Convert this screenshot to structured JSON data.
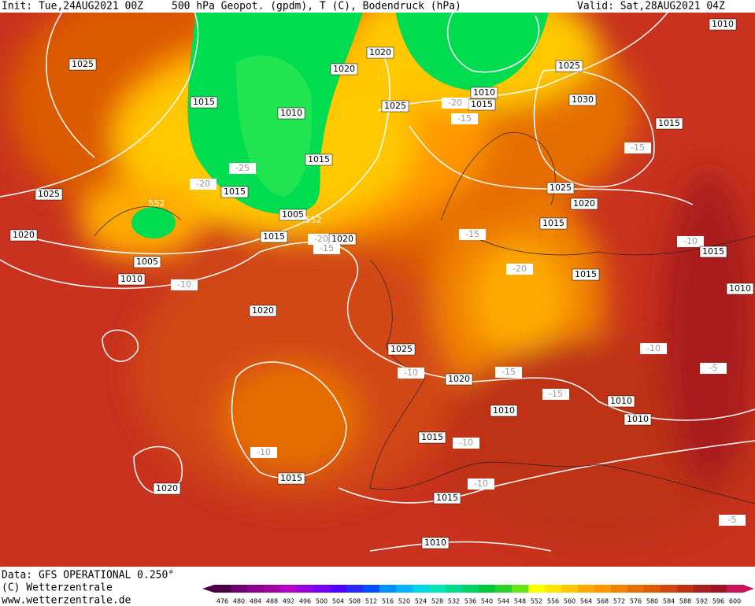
{
  "header": {
    "init": "Init: Tue,24AUG2021 00Z",
    "title": "500 hPa Geopot. (gpdm), T (C), Bodendruck (hPa)",
    "valid": "Valid: Sat,28AUG2021 04Z"
  },
  "map_labels": [
    "1025",
    "1020",
    "1020",
    "1010",
    "1015",
    "-20",
    "-15",
    "1025",
    "1015",
    "1010",
    "1030",
    "1025",
    "1010",
    "1015",
    "-15",
    "1015",
    "-25",
    "-20",
    "1015",
    "1025",
    "552",
    "1005",
    "552",
    "1020",
    "1015",
    "-20",
    "1020",
    "-15",
    "-15",
    "1025",
    "1020",
    "1015",
    "-10",
    "1015",
    "1005",
    "1010",
    "-10",
    "-20",
    "1015",
    "1010",
    "1020",
    "1025",
    "-10",
    "-10",
    "-5",
    "-15",
    "1020",
    "-15",
    "1010",
    "1010",
    "1010",
    "1015",
    "-10",
    "-10",
    "1015",
    "1020",
    "-10",
    "1015",
    "-5",
    "1010"
  ],
  "legend": {
    "labels": [
      476,
      480,
      484,
      488,
      492,
      496,
      500,
      504,
      508,
      512,
      516,
      520,
      524,
      528,
      532,
      536,
      540,
      544,
      548,
      552,
      556,
      560,
      564,
      568,
      572,
      576,
      580,
      584,
      588,
      592,
      596,
      600
    ],
    "colors": [
      "#4b0046",
      "#6e006e",
      "#8c008c",
      "#a000a0",
      "#b400c8",
      "#9600dc",
      "#7800f0",
      "#5000ff",
      "#2828ff",
      "#0050ff",
      "#0090ff",
      "#00b4ff",
      "#00d8e6",
      "#00e6b4",
      "#00dc8c",
      "#00d264",
      "#00c83c",
      "#28d228",
      "#64e614",
      "#ffff00",
      "#ffe600",
      "#ffc800",
      "#ffaa00",
      "#ff9600",
      "#f08200",
      "#e66e00",
      "#dc5a00",
      "#d24614",
      "#be3214",
      "#aa1e1e",
      "#a01428",
      "#c8145a"
    ]
  },
  "footer": {
    "source": "Data: GFS OPERATIONAL 0.250°",
    "copyright": "(C) Wetterzentrale",
    "url": "www.wetterzentrale.de"
  }
}
